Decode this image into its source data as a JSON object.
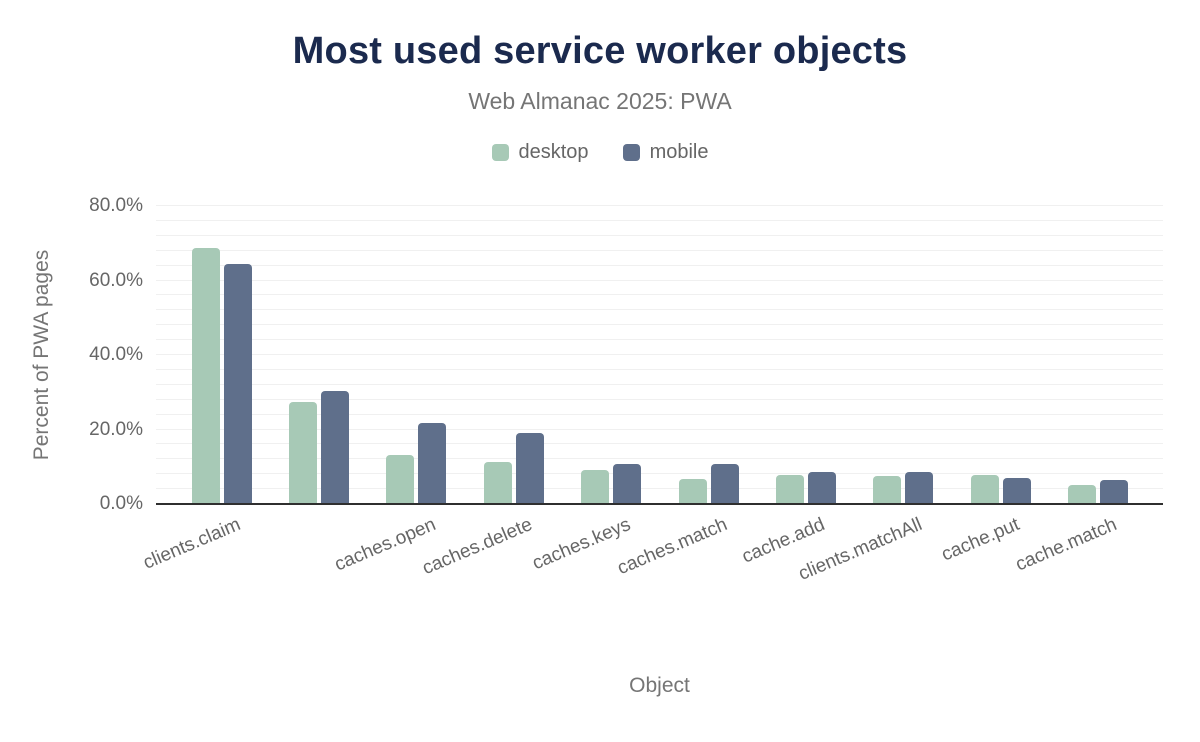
{
  "chart_data": {
    "type": "bar",
    "title": "Most used service worker objects",
    "subtitle": "Web Almanac 2025: PWA",
    "xlabel": "Object",
    "ylabel": "Percent of PWA pages",
    "ylim": [
      0,
      80
    ],
    "ytick_interval": 20,
    "ytick_labels": [
      "0.0%",
      "20.0%",
      "40.0%",
      "60.0%",
      "80.0%"
    ],
    "gridline_interval": 4,
    "grid": true,
    "legend_position": "top",
    "categories": [
      "clients.claim",
      "",
      "caches.open",
      "caches.delete",
      "caches.keys",
      "caches.match",
      "cache.add",
      "clients.matchAll",
      "cache.put",
      "cache.match"
    ],
    "series": [
      {
        "name": "desktop",
        "color": "#a7c9b6",
        "values": [
          68.6,
          27.3,
          13.2,
          11.2,
          9.0,
          6.7,
          7.8,
          7.4,
          7.8,
          5.2
        ]
      },
      {
        "name": "mobile",
        "color": "#5f6f8b",
        "values": [
          64.4,
          30.4,
          21.8,
          19.1,
          10.7,
          10.7,
          8.6,
          8.5,
          7.0,
          6.4
        ]
      }
    ]
  },
  "colors": {
    "title": "#1b2a4e",
    "subtitle": "#757575",
    "axis_text": "#666666",
    "gridline": "#f0f0f0",
    "axis_line": "#2f2f2f",
    "background": "#ffffff"
  }
}
